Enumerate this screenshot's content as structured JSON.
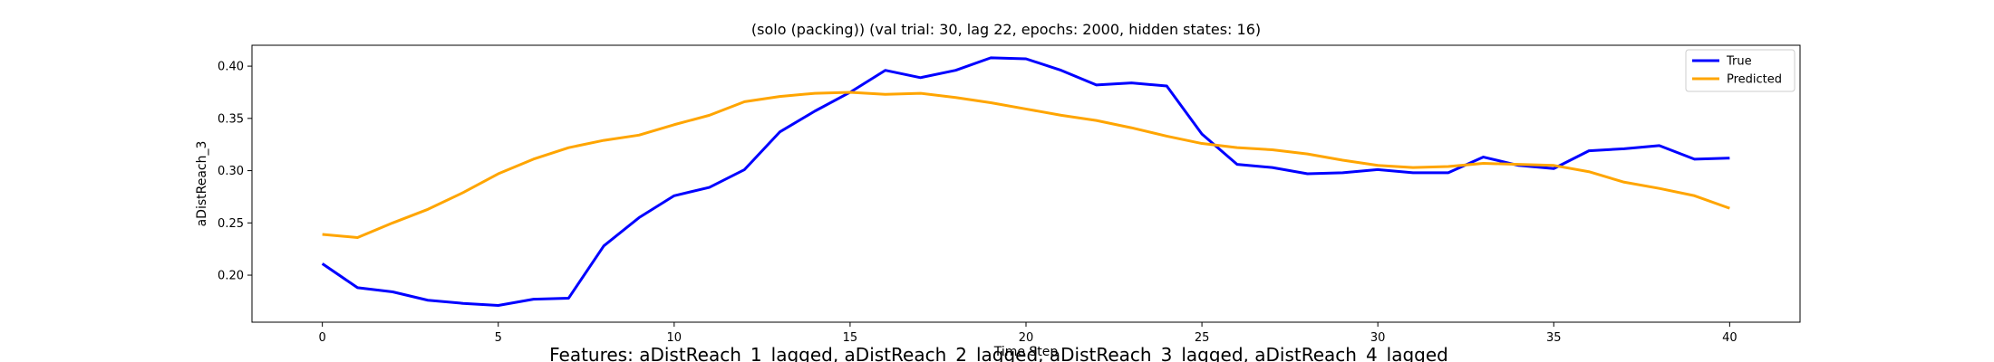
{
  "chart_data": {
    "type": "line",
    "title": "(solo (packing)) (val trial: 30, lag 22, epochs: 2000, hidden states: 16)",
    "xlabel": "Time Step",
    "ylabel": "aDistReach_3",
    "footer": "Features: aDistReach_1_lagged, aDistReach_2_lagged, aDistReach_3_lagged, aDistReach_4_lagged",
    "xlim": [
      -2,
      42
    ],
    "ylim": [
      0.155,
      0.42
    ],
    "xticks": [
      0,
      5,
      10,
      15,
      20,
      25,
      30,
      35,
      40
    ],
    "yticks": [
      0.2,
      0.25,
      0.3,
      0.35,
      0.4
    ],
    "ytick_labels": [
      "0.20",
      "0.25",
      "0.30",
      "0.35",
      "0.40"
    ],
    "legend_position": "top-right",
    "x": [
      0,
      1,
      2,
      3,
      4,
      5,
      6,
      7,
      8,
      9,
      10,
      11,
      12,
      13,
      14,
      15,
      16,
      17,
      18,
      19,
      20,
      21,
      22,
      23,
      24,
      25,
      26,
      27,
      28,
      29,
      30,
      31,
      32,
      33,
      34,
      35,
      36,
      37,
      38,
      39,
      40
    ],
    "series": [
      {
        "name": "True",
        "color": "#0000ff",
        "values": [
          0.211,
          0.188,
          0.184,
          0.176,
          0.173,
          0.171,
          0.177,
          0.178,
          0.228,
          0.255,
          0.276,
          0.284,
          0.301,
          0.337,
          0.357,
          0.375,
          0.396,
          0.389,
          0.396,
          0.408,
          0.407,
          0.396,
          0.382,
          0.384,
          0.381,
          0.335,
          0.306,
          0.303,
          0.297,
          0.298,
          0.301,
          0.298,
          0.298,
          0.313,
          0.305,
          0.302,
          0.319,
          0.321,
          0.324,
          0.311,
          0.312
        ]
      },
      {
        "name": "Predicted",
        "color": "#ffa500",
        "values": [
          0.239,
          0.236,
          0.25,
          0.263,
          0.279,
          0.297,
          0.311,
          0.322,
          0.329,
          0.334,
          0.344,
          0.353,
          0.366,
          0.371,
          0.374,
          0.375,
          0.373,
          0.374,
          0.37,
          0.365,
          0.359,
          0.353,
          0.348,
          0.341,
          0.333,
          0.326,
          0.322,
          0.32,
          0.316,
          0.31,
          0.305,
          0.303,
          0.304,
          0.307,
          0.306,
          0.305,
          0.299,
          0.289,
          0.283,
          0.276,
          0.264
        ]
      }
    ]
  }
}
